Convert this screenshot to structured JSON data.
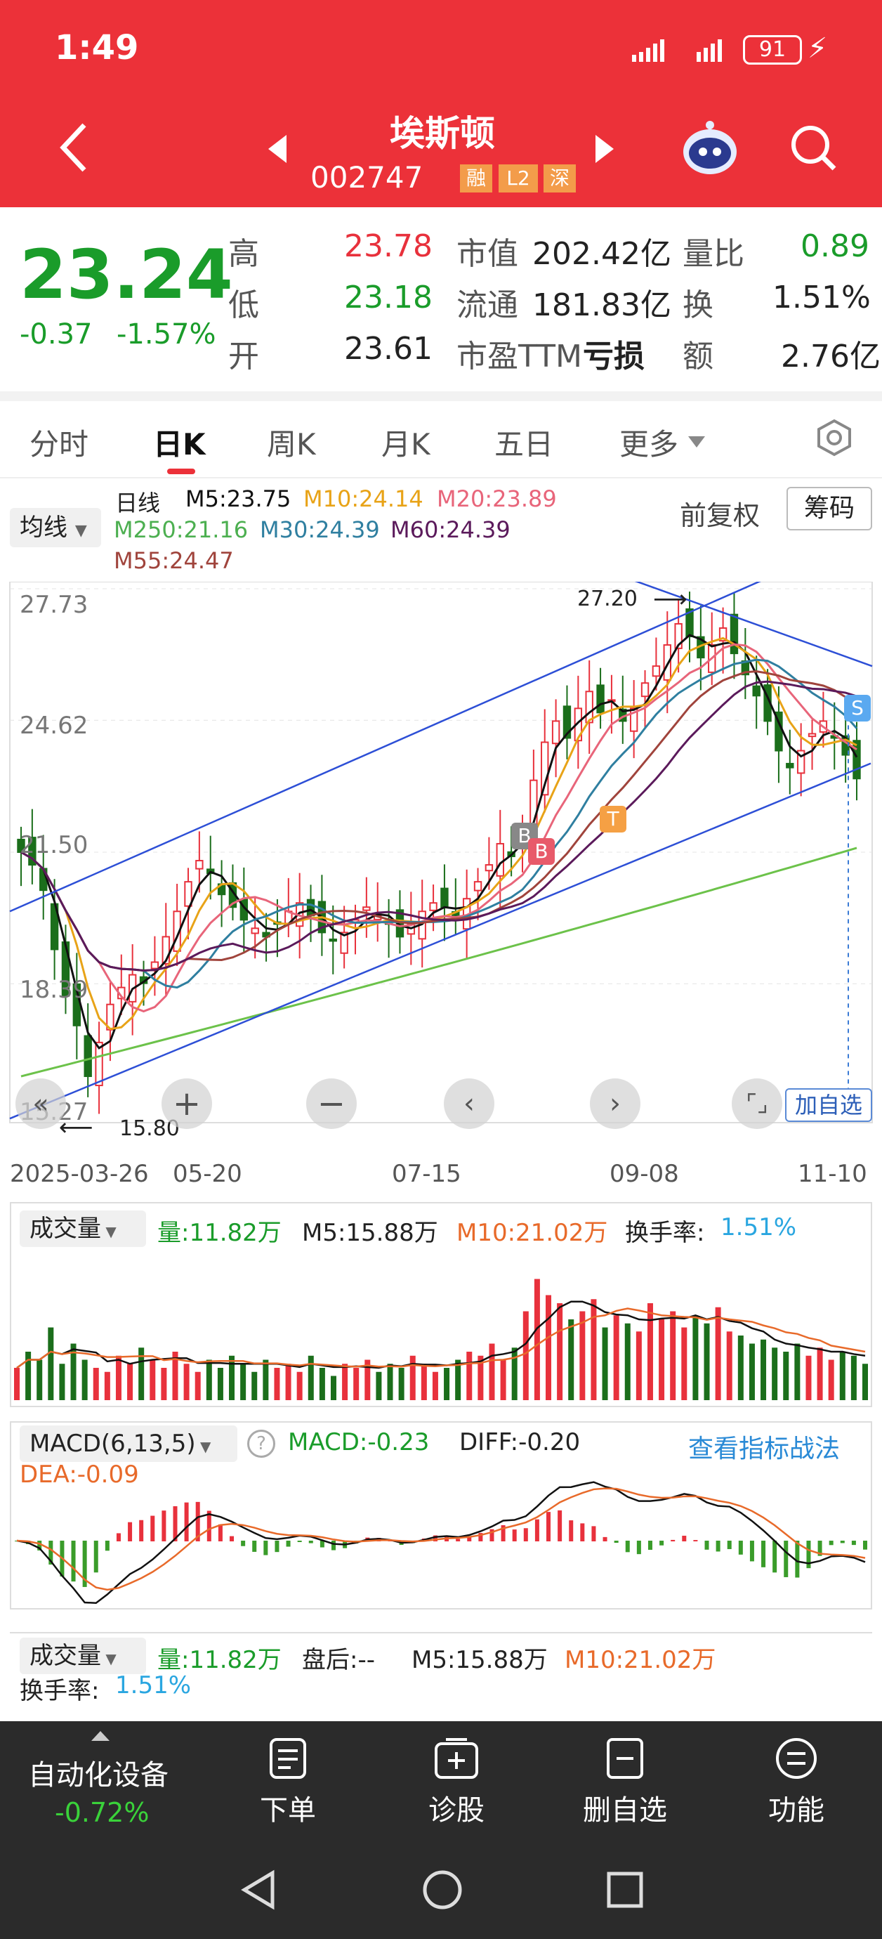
{
  "status_bar": {
    "time": "1:49",
    "battery": "91"
  },
  "header": {
    "stock_name": "埃斯顿",
    "stock_code": "002747",
    "badges": [
      "融",
      "L2",
      "深"
    ]
  },
  "quote": {
    "price": "23.24",
    "change": "-0.37",
    "change_pct": "-1.57%",
    "rows": [
      {
        "l1": "高",
        "v1": "23.78",
        "l2": "市值",
        "v2": "202.42亿",
        "l3": "量比",
        "v3": "0.89"
      },
      {
        "l1": "低",
        "v1": "23.18",
        "l2": "流通",
        "v2": "181.83亿",
        "l3": "换",
        "v3": "1.51%"
      },
      {
        "l1": "开",
        "v1": "23.61",
        "l2": "市盈TTM",
        "v2": "亏损",
        "l3": "额",
        "v3": "2.76亿"
      }
    ]
  },
  "tabs": [
    "分时",
    "日K",
    "周K",
    "月K",
    "五日",
    "更多"
  ],
  "ma_panel": {
    "selector": "均线",
    "period": "日线",
    "m5": "M5:23.75",
    "m10": "M10:24.14",
    "m20": "M20:23.89",
    "m250": "M250:21.16",
    "m30": "M30:24.39",
    "m60": "M60:24.39",
    "m55": "M55:24.47",
    "adjust": "前复权",
    "chips": "筹码"
  },
  "colors": {
    "up": "#e8313c",
    "down": "#1b6e1b",
    "m5": "#111111",
    "m10": "#e8a317",
    "m20": "#e8657a",
    "m30": "#2f7fa0",
    "m60": "#5b1a5b",
    "m55": "#a0443c",
    "m250": "#6cc24a",
    "trend": "#2d4fd6",
    "header": "#ec3139"
  },
  "chart_data": {
    "type": "candlestick",
    "y_ticks": [
      "27.73",
      "24.62",
      "21.50",
      "18.39",
      "15.27"
    ],
    "x_ticks": [
      "2025-03-26",
      "05-20",
      "07-15",
      "09-08",
      "11-10"
    ],
    "high_label": "27.20",
    "low_label": "15.80",
    "markers": [
      "B",
      "B",
      "T",
      "S"
    ],
    "closes": [
      21.5,
      21.2,
      20.6,
      19.2,
      18.1,
      17.4,
      16.2,
      17.0,
      17.9,
      18.3,
      18.6,
      18.4,
      18.9,
      19.5,
      20.1,
      20.8,
      21.3,
      21.0,
      20.5,
      20.2,
      19.9,
      19.7,
      19.5,
      19.8,
      20.1,
      20.3,
      20.0,
      19.6,
      19.4,
      19.6,
      19.9,
      20.2,
      20.0,
      19.8,
      19.5,
      19.8,
      20.1,
      20.3,
      20.2,
      20.0,
      20.4,
      20.8,
      21.2,
      21.7,
      21.4,
      22.0,
      23.2,
      24.1,
      24.6,
      24.2,
      24.9,
      25.3,
      24.8,
      25.1,
      24.6,
      24.9,
      25.5,
      25.9,
      26.4,
      26.9,
      26.6,
      26.1,
      26.4,
      26.8,
      26.2,
      25.7,
      25.2,
      24.6,
      23.9,
      23.5,
      23.9,
      24.3,
      24.6,
      24.2,
      23.8,
      23.24
    ],
    "ylim": [
      15.27,
      27.73
    ]
  },
  "volume": {
    "selector": "成交量",
    "vol": "量:11.82万",
    "m5": "M5:15.88万",
    "m10": "M10:21.02万",
    "turnover_label": "换手率:",
    "turnover": "1.51%",
    "values": [
      8,
      12,
      10,
      18,
      9,
      14,
      10,
      8,
      7,
      11,
      9,
      13,
      10,
      8,
      12,
      9,
      7,
      10,
      8,
      11,
      9,
      7,
      10,
      8,
      9,
      7,
      11,
      8,
      6,
      9,
      8,
      10,
      7,
      9,
      8,
      11,
      9,
      7,
      8,
      10,
      12,
      11,
      14,
      10,
      13,
      22,
      30,
      26,
      24,
      20,
      22,
      25,
      18,
      21,
      19,
      17,
      24,
      20,
      22,
      18,
      21,
      19,
      23,
      17,
      16,
      14,
      15,
      13,
      12,
      14,
      11,
      13,
      10,
      12,
      11,
      9
    ]
  },
  "macd": {
    "selector": "MACD(6,13,5)",
    "macd": "MACD:-0.23",
    "diff": "DIFF:-0.20",
    "dea": "DEA:-0.09",
    "link": "查看指标战法"
  },
  "volume2": {
    "selector": "成交量",
    "vol": "量:11.82万",
    "after": "盘后:--",
    "m5": "M5:15.88万",
    "m10": "M10:21.02万",
    "turnover_label": "换手率:",
    "turnover": "1.51%"
  },
  "controls": {
    "add_watch": "加自选"
  },
  "bottom": {
    "sector": "自动化设备",
    "sector_change": "-0.72%",
    "items": [
      "下单",
      "诊股",
      "删自选",
      "功能"
    ]
  }
}
